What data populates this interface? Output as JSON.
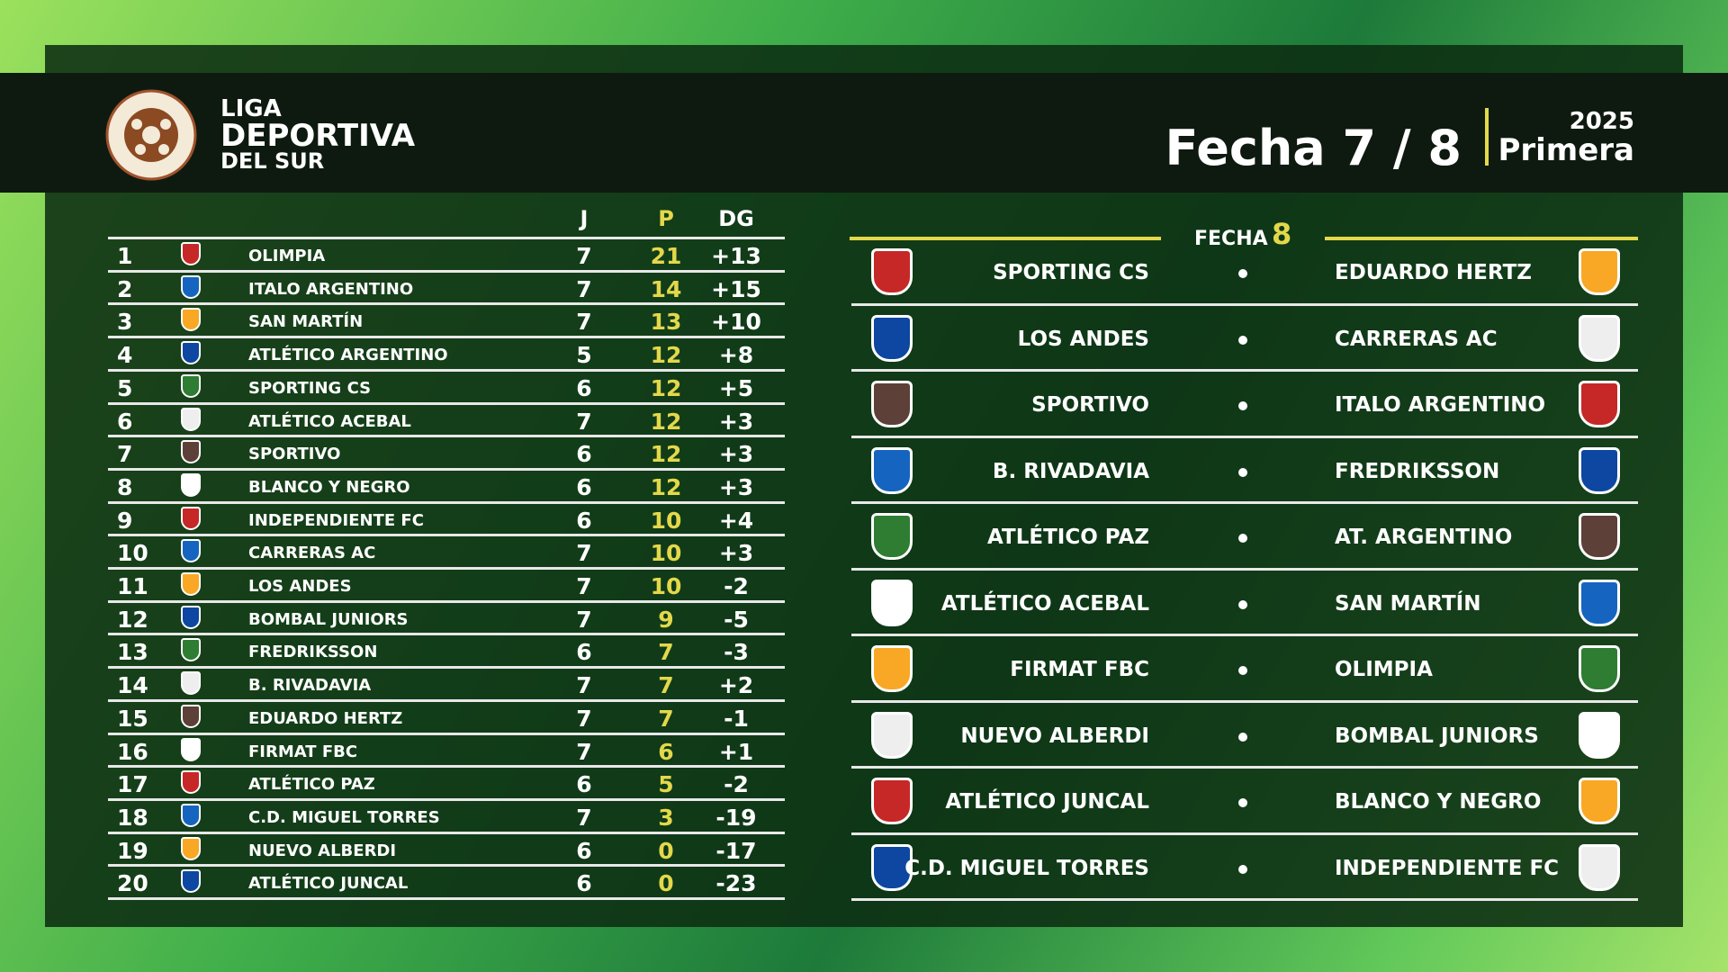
{
  "header": {
    "league": [
      "LIGA",
      "DEPORTIVA",
      "DEL SUR"
    ],
    "round": "Fecha 7 / 8",
    "year": "2025",
    "division": "Primera"
  },
  "standings": {
    "columns": [
      "J",
      "P",
      "DG"
    ],
    "rows": [
      [
        1,
        "OLIMPIA",
        7,
        21,
        "+13"
      ],
      [
        2,
        "ITALO ARGENTINO",
        7,
        14,
        "+15"
      ],
      [
        3,
        "SAN MARTÍN",
        7,
        13,
        "+10"
      ],
      [
        4,
        "ATLÉTICO ARGENTINO",
        5,
        12,
        "+8"
      ],
      [
        5,
        "SPORTING CS",
        6,
        12,
        "+5"
      ],
      [
        6,
        "ATLÉTICO ACEBAL",
        7,
        12,
        "+3"
      ],
      [
        7,
        "SPORTIVO",
        6,
        12,
        "+3"
      ],
      [
        8,
        "BLANCO Y NEGRO",
        6,
        12,
        "+3"
      ],
      [
        9,
        "INDEPENDIENTE FC",
        6,
        10,
        "+4"
      ],
      [
        10,
        "CARRERAS AC",
        7,
        10,
        "+3"
      ],
      [
        11,
        "LOS ANDES",
        7,
        10,
        "-2"
      ],
      [
        12,
        "BOMBAL JUNIORS",
        7,
        9,
        "-5"
      ],
      [
        13,
        "FREDRIKSSON",
        6,
        7,
        "-3"
      ],
      [
        14,
        "B. RIVADAVIA",
        7,
        7,
        "+2"
      ],
      [
        15,
        "EDUARDO HERTZ",
        7,
        7,
        "-1"
      ],
      [
        16,
        "FIRMAT FBC",
        7,
        6,
        "+1"
      ],
      [
        17,
        "ATLÉTICO PAZ",
        6,
        5,
        "-2"
      ],
      [
        18,
        "C.D. MIGUEL TORRES",
        7,
        3,
        "-19"
      ],
      [
        19,
        "NUEVO ALBERDI",
        6,
        0,
        "-17"
      ],
      [
        20,
        "ATLÉTICO JUNCAL",
        6,
        0,
        "-23"
      ]
    ]
  },
  "fixtures": {
    "label": "FECHA",
    "number": "8",
    "matches": [
      [
        "SPORTING CS",
        "EDUARDO HERTZ"
      ],
      [
        "LOS ANDES",
        "CARRERAS AC"
      ],
      [
        "SPORTIVO",
        "ITALO ARGENTINO"
      ],
      [
        "B. RIVADAVIA",
        "FREDRIKSSON"
      ],
      [
        "ATLÉTICO PAZ",
        "AT. ARGENTINO"
      ],
      [
        "ATLÉTICO ACEBAL",
        "SAN MARTÍN"
      ],
      [
        "FIRMAT FBC",
        "OLIMPIA"
      ],
      [
        "NUEVO ALBERDI",
        "BOMBAL JUNIORS"
      ],
      [
        "ATLÉTICO JUNCAL",
        "BLANCO Y NEGRO"
      ],
      [
        "C.D. MIGUEL TORRES",
        "INDEPENDIENTE FC"
      ]
    ]
  }
}
